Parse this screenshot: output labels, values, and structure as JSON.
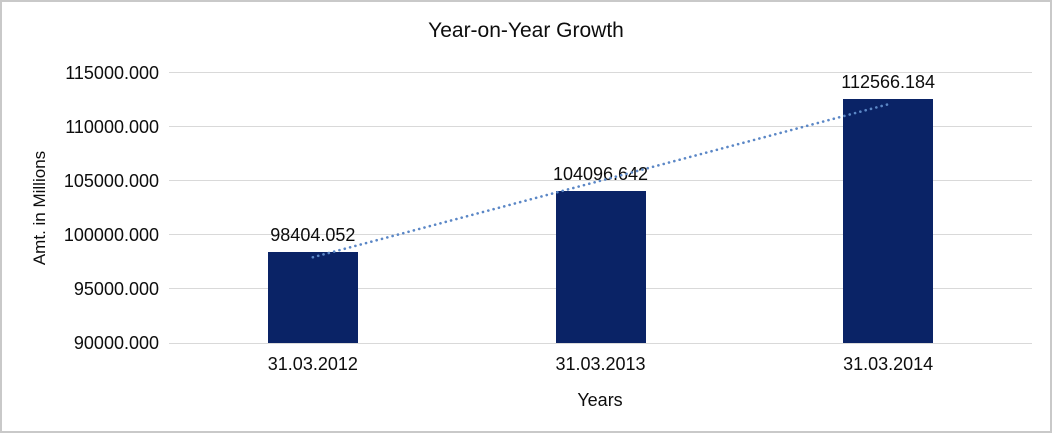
{
  "colors": {
    "background": "#ffffff",
    "frame_border": "#c9c9c9",
    "bar_fill": "#0a2366",
    "gridline": "#d9d9d9",
    "trendline": "#5b87c6",
    "text": "#0d0d0d"
  },
  "chart_data": {
    "type": "bar",
    "title": "Year-on-Year Growth",
    "xlabel": "Years",
    "ylabel": "Amt. in Millions",
    "categories": [
      "31.03.2012",
      "31.03.2013",
      "31.03.2014"
    ],
    "values": [
      98404.052,
      104096.642,
      112566.184
    ],
    "data_labels": [
      "98404.052",
      "104096.642",
      "112566.184"
    ],
    "ylim": [
      90000,
      115000
    ],
    "ytick_step": 5000,
    "ytick_labels": [
      "90000.000",
      "95000.000",
      "100000.000",
      "105000.000",
      "110000.000",
      "115000.000"
    ],
    "grid": true,
    "legend": "none",
    "trendline": {
      "type": "linear",
      "style": "dotted"
    }
  }
}
